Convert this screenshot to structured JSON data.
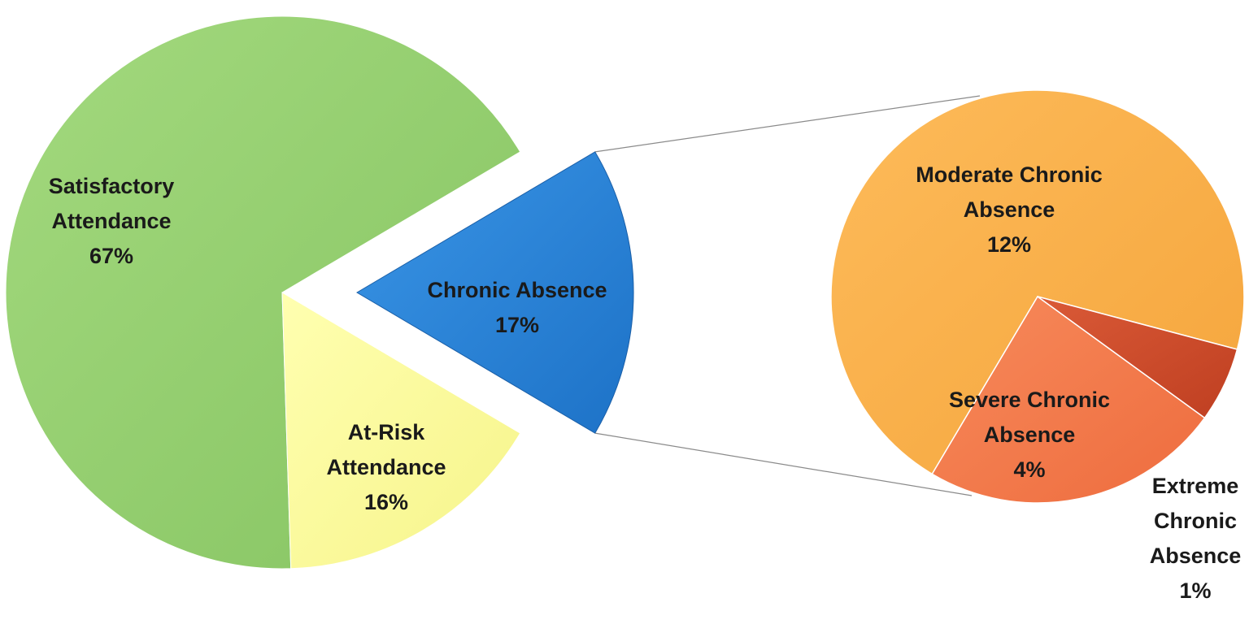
{
  "chart_data": [
    {
      "type": "pie",
      "categories": [
        "Satisfactory Attendance",
        "At-Risk Attendance",
        "Chronic Absence"
      ],
      "values": [
        67,
        16,
        17
      ],
      "labels": [
        [
          "Satisfactory",
          "Attendance",
          "67%"
        ],
        [
          "At-Risk",
          "Attendance",
          "16%"
        ],
        [
          "Chronic Absence",
          "17%"
        ]
      ],
      "colors": [
        "#92cd6e",
        "#ffff9e",
        "#2a86d9"
      ],
      "exploded": "Chronic Absence"
    },
    {
      "type": "pie",
      "detail_of": "Chronic Absence",
      "categories": [
        "Moderate Chronic Absence",
        "Severe Chronic Absence",
        "Extreme Chronic Absence"
      ],
      "values": [
        12,
        4,
        1
      ],
      "labels": [
        [
          "Moderate Chronic",
          "Absence",
          "12%"
        ],
        [
          "Severe Chronic",
          "Absence",
          "4%"
        ],
        [
          "Extreme",
          "Chronic",
          "Absence",
          "1%"
        ]
      ],
      "colors": [
        "#fbb04a",
        "#f47a4c",
        "#cf4b2a"
      ]
    }
  ]
}
